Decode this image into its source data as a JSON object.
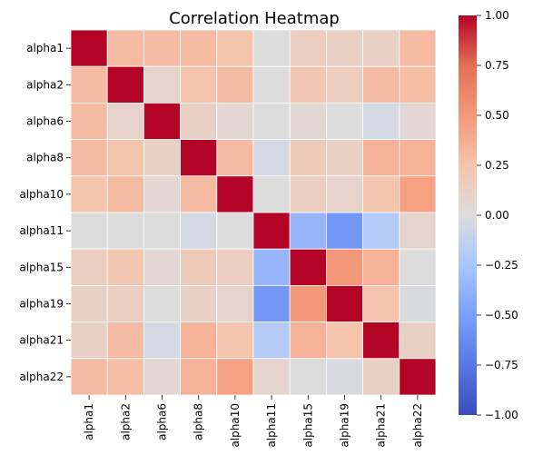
{
  "chart_data": {
    "type": "heatmap",
    "title": "Correlation Heatmap",
    "xlabel": "",
    "ylabel": "",
    "rows": [
      "alpha1",
      "alpha2",
      "alpha6",
      "alpha8",
      "alpha10",
      "alpha11",
      "alpha15",
      "alpha19",
      "alpha21",
      "alpha22"
    ],
    "columns": [
      "alpha1",
      "alpha2",
      "alpha6",
      "alpha8",
      "alpha10",
      "alpha11",
      "alpha15",
      "alpha19",
      "alpha21",
      "alpha22"
    ],
    "values": [
      [
        1.0,
        0.3,
        0.3,
        0.3,
        0.25,
        0.0,
        0.15,
        0.12,
        0.12,
        0.3
      ],
      [
        0.3,
        1.0,
        0.1,
        0.25,
        0.3,
        0.0,
        0.22,
        0.15,
        0.3,
        0.28
      ],
      [
        0.3,
        0.1,
        1.0,
        0.12,
        0.05,
        0.0,
        0.05,
        0.0,
        -0.05,
        0.05
      ],
      [
        0.3,
        0.25,
        0.12,
        1.0,
        0.3,
        -0.05,
        0.18,
        0.12,
        0.35,
        0.35
      ],
      [
        0.25,
        0.3,
        0.05,
        0.3,
        1.0,
        0.0,
        0.15,
        0.1,
        0.25,
        0.45
      ],
      [
        0.0,
        0.0,
        0.0,
        -0.05,
        0.0,
        1.0,
        -0.35,
        -0.55,
        -0.2,
        0.08
      ],
      [
        0.15,
        0.22,
        0.05,
        0.18,
        0.15,
        -0.35,
        1.0,
        0.5,
        0.35,
        0.0
      ],
      [
        0.12,
        0.15,
        0.0,
        0.12,
        0.1,
        -0.55,
        0.5,
        1.0,
        0.25,
        -0.02
      ],
      [
        0.12,
        0.3,
        -0.05,
        0.35,
        0.25,
        -0.2,
        0.35,
        0.25,
        1.0,
        0.12
      ],
      [
        0.3,
        0.28,
        0.05,
        0.35,
        0.45,
        0.08,
        0.0,
        -0.02,
        0.12,
        1.0
      ]
    ],
    "colorbar": {
      "min": -1.0,
      "max": 1.0,
      "ticks": [
        "1.00",
        "0.75",
        "0.50",
        "0.25",
        "0.00",
        "−0.25",
        "−0.50",
        "−0.75",
        "−1.00"
      ],
      "colormap": "coolwarm"
    },
    "grid": true
  }
}
